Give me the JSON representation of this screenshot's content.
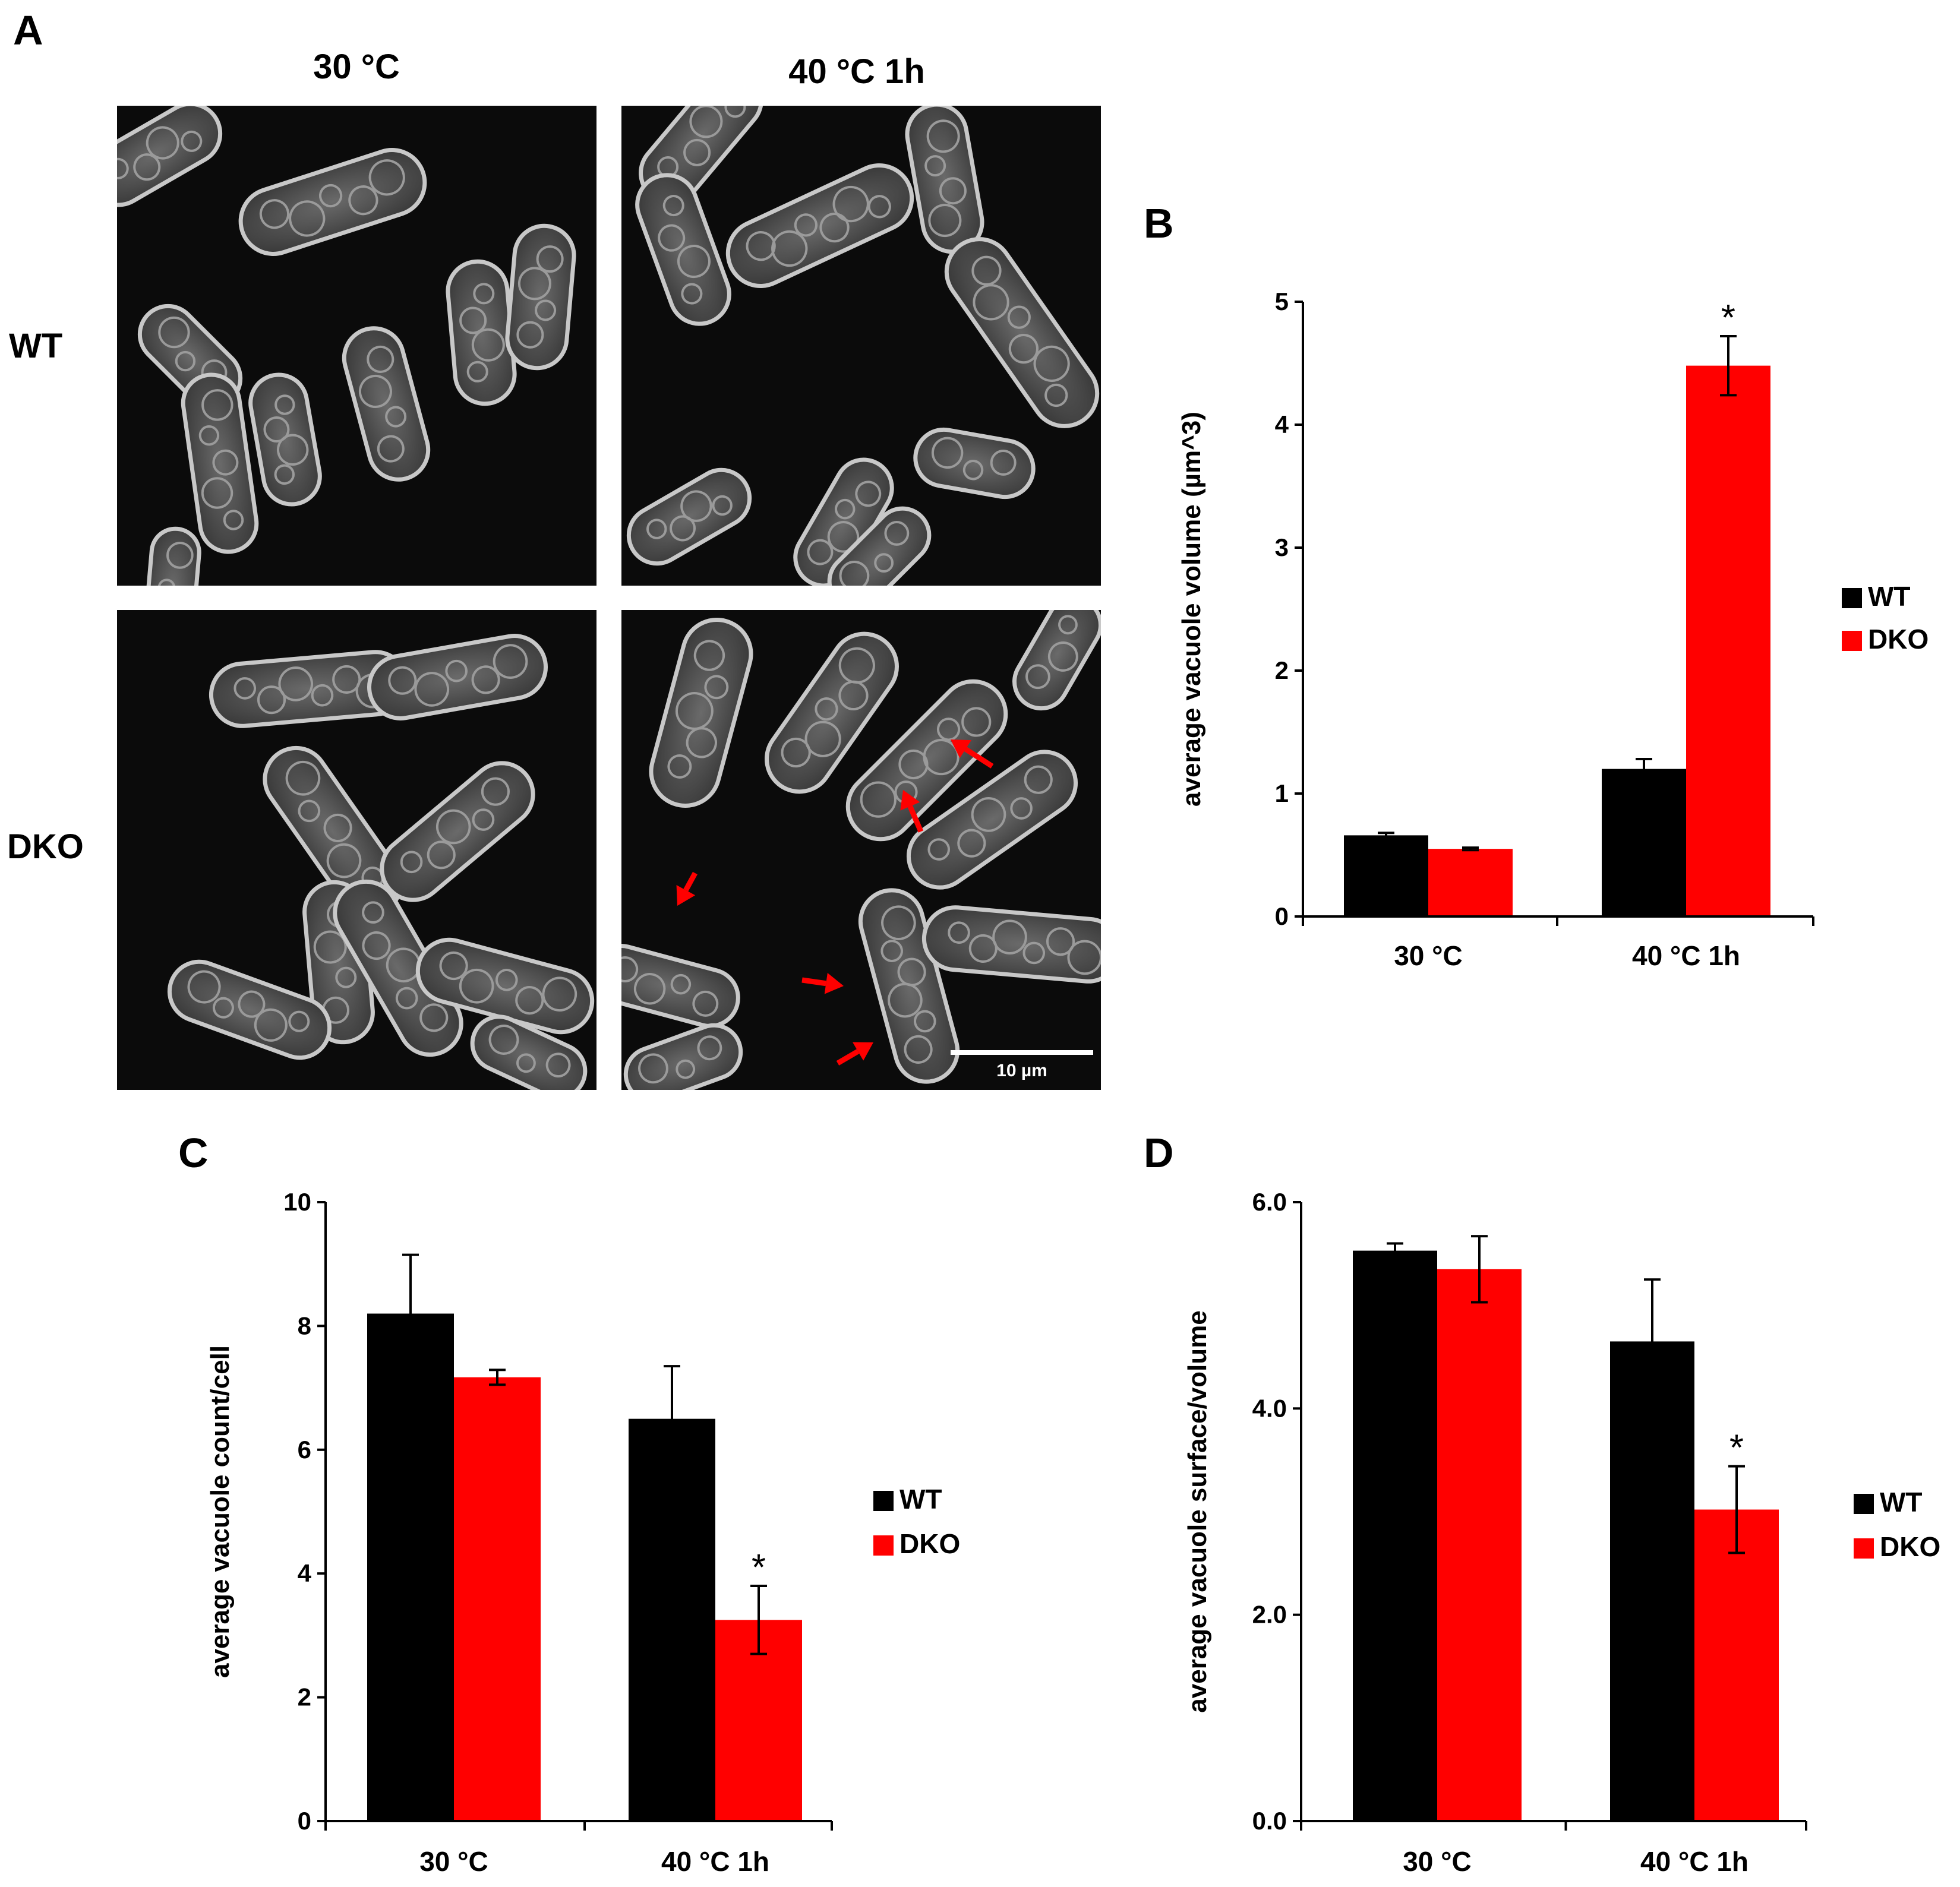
{
  "panel_a": {
    "letter": "A",
    "columns": [
      "30 °C",
      "40 °C 1h"
    ],
    "rows": [
      "WT",
      "DKO"
    ],
    "scale_bar_label": "10 µm"
  },
  "colors": {
    "wt": "#000000",
    "dko": "#ff0000",
    "arrow": "#ff0000"
  },
  "chart_data": [
    {
      "panel": "B",
      "type": "bar",
      "categories": [
        "30 °C",
        "40 °C 1h"
      ],
      "series": [
        {
          "name": "WT",
          "values": [
            0.66,
            1.2
          ],
          "errors": [
            0.02,
            0.08
          ]
        },
        {
          "name": "DKO",
          "values": [
            0.55,
            4.48
          ],
          "errors": [
            0.01,
            0.24
          ]
        }
      ],
      "ylabel": "average vacuole volume (µm^3)",
      "ylim": [
        0,
        5
      ],
      "yticks": [
        "0",
        "1",
        "2",
        "3",
        "4",
        "5"
      ],
      "significance": [
        {
          "category": 1,
          "series": 1,
          "mark": "*"
        }
      ],
      "legend": "right"
    },
    {
      "panel": "C",
      "type": "bar",
      "categories": [
        "30 °C",
        "40 °C 1h"
      ],
      "series": [
        {
          "name": "WT",
          "values": [
            8.2,
            6.5
          ],
          "errors": [
            0.95,
            0.85
          ]
        },
        {
          "name": "DKO",
          "values": [
            7.17,
            3.25
          ],
          "errors": [
            0.12,
            0.55
          ]
        }
      ],
      "ylabel": "average vacuole count/cell",
      "ylim": [
        0,
        10
      ],
      "yticks": [
        "0",
        "2",
        "4",
        "6",
        "8",
        "10"
      ],
      "significance": [
        {
          "category": 1,
          "series": 1,
          "mark": "*"
        }
      ],
      "legend": "right"
    },
    {
      "panel": "D",
      "type": "bar",
      "categories": [
        "30 °C",
        "40 °C 1h"
      ],
      "series": [
        {
          "name": "WT",
          "values": [
            5.53,
            4.65
          ],
          "errors": [
            0.07,
            0.6
          ]
        },
        {
          "name": "DKO",
          "values": [
            5.35,
            3.02
          ],
          "errors": [
            0.32,
            0.42
          ]
        }
      ],
      "ylabel": "average vacuole surface/volume",
      "ylim": [
        0,
        6
      ],
      "yticks": [
        "0.0",
        "2.0",
        "4.0",
        "6.0"
      ],
      "significance": [
        {
          "category": 1,
          "series": 1,
          "mark": "*"
        }
      ],
      "legend": "right"
    }
  ]
}
